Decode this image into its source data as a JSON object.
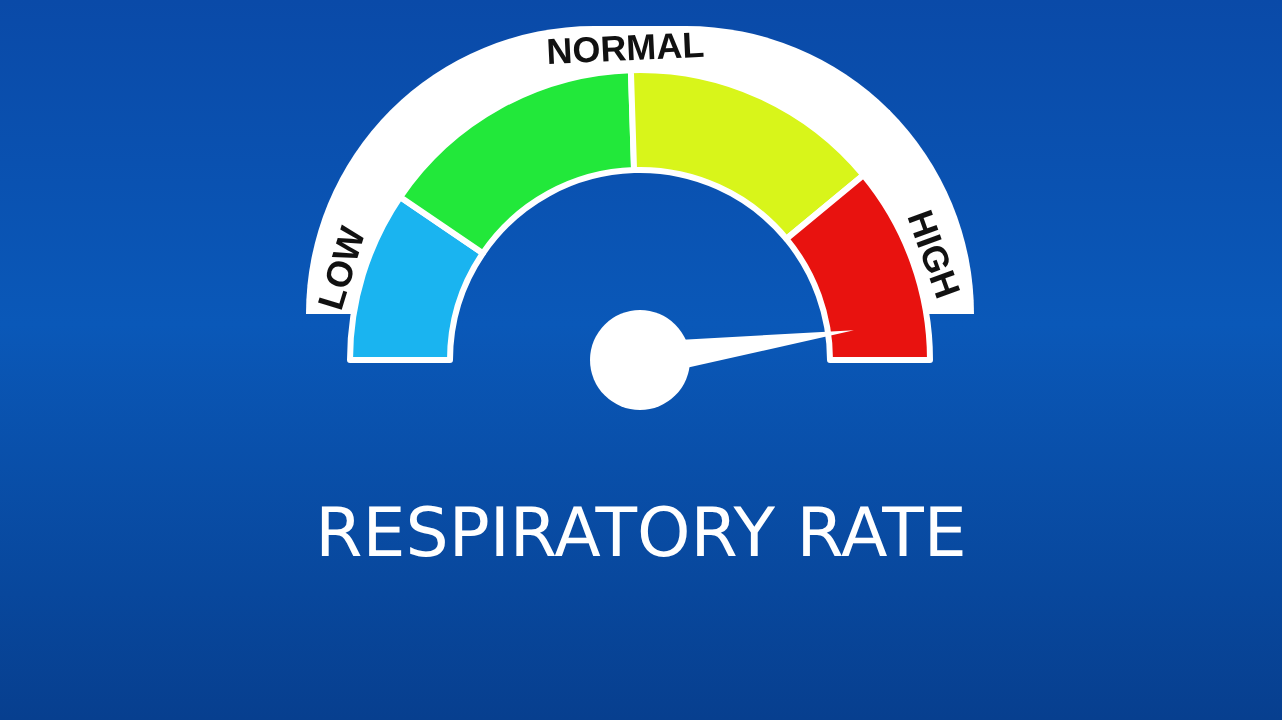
{
  "chart_data": {
    "type": "donut",
    "title": "RESPIRATORY RATE",
    "categories": [
      "LOW",
      "NORMAL",
      null,
      "HIGH"
    ],
    "values": [
      19,
      30,
      29,
      22
    ],
    "colors": [
      "#1ab4f0",
      "#22e83a",
      "#d8f51a",
      "#e8120f"
    ],
    "needle": "HIGH",
    "legend": false
  }
}
